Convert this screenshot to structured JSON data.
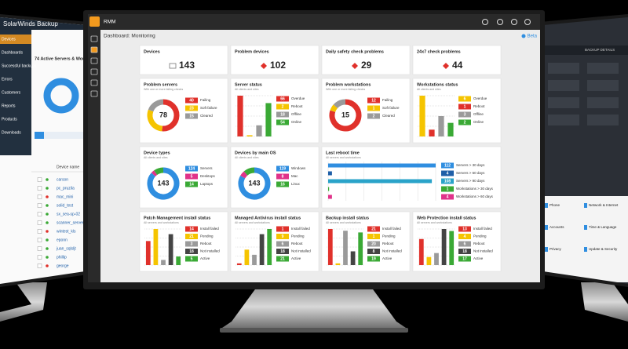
{
  "left_screen": {
    "title": "SolarWinds Backup",
    "nav": [
      "Devices",
      "Dashboards",
      "Successful backups",
      "Errors",
      "Customers",
      "Reports",
      "Products",
      "Downloads"
    ],
    "heading": "74 Active Servers & Workst...",
    "column": "Device name",
    "devices": [
      "carson",
      "pc_pruzila",
      "mac_mini",
      "solid_test",
      "sx_sea-sp-02",
      "scanner_server1",
      "wintest_kls",
      "eponn",
      "juan_sqlsljt",
      "phillip",
      "george"
    ]
  },
  "right_screen": {
    "tab": "BACKUP DETAILS",
    "items": [
      "Phone",
      "Network & Internet",
      "Accounts",
      "Time & Language",
      "Privacy",
      "Update & Security"
    ]
  },
  "app": {
    "name": "RMM",
    "page_title": "Dashboard: Monitoring",
    "badge": "Beta"
  },
  "widgets": [
    {
      "type": "stat",
      "title": "Devices",
      "value": 143,
      "alert": false
    },
    {
      "type": "stat",
      "title": "Problem devices",
      "value": 102,
      "alert": true
    },
    {
      "type": "stat",
      "title": "Daily safety check problems",
      "value": 29,
      "alert": true
    },
    {
      "type": "stat",
      "title": "24x7 check problems",
      "value": 44,
      "alert": true
    },
    {
      "type": "donut",
      "title": "Problem servers",
      "subtitle": "With one or more failing checks",
      "center": 78,
      "legend": [
        {
          "label": "Failing",
          "value": 40,
          "color": "#e0312b"
        },
        {
          "label": "Soft failure",
          "value": 23,
          "color": "#f5c400"
        },
        {
          "label": "Cleared",
          "value": 15,
          "color": "#9a9a9a"
        }
      ]
    },
    {
      "type": "bars",
      "title": "Server status",
      "subtitle": "All clients and sites",
      "legend": [
        {
          "label": "Overdue",
          "value": 66,
          "color": "#e0312b"
        },
        {
          "label": "Reboot",
          "value": 2,
          "color": "#f5c400"
        },
        {
          "label": "Offline",
          "value": 18,
          "color": "#9a9a9a"
        },
        {
          "label": "Online",
          "value": 54,
          "color": "#3aa935"
        }
      ]
    },
    {
      "type": "donut",
      "title": "Problem workstations",
      "subtitle": "With one or more failing checks",
      "center": 15,
      "legend": [
        {
          "label": "Failing",
          "value": 12,
          "color": "#e0312b"
        },
        {
          "label": "Soft failure",
          "value": 1,
          "color": "#f5c400"
        },
        {
          "label": "Cleared",
          "value": 2,
          "color": "#9a9a9a"
        }
      ]
    },
    {
      "type": "bars",
      "title": "Workstations status",
      "subtitle": "All clients and sites",
      "legend": [
        {
          "label": "Overdue",
          "value": 6,
          "color": "#f5c400"
        },
        {
          "label": "Reboot",
          "value": 1,
          "color": "#e0312b"
        },
        {
          "label": "Offline",
          "value": 3,
          "color": "#9a9a9a"
        },
        {
          "label": "Online",
          "value": 2,
          "color": "#3aa935"
        }
      ]
    },
    {
      "type": "donut",
      "title": "Device types",
      "subtitle": "All clients and sites",
      "center": 143,
      "legend": [
        {
          "label": "Servers",
          "value": 124,
          "color": "#2f8ee0"
        },
        {
          "label": "Desktops",
          "value": 5,
          "color": "#e0338a"
        },
        {
          "label": "Laptops",
          "value": 14,
          "color": "#3aa935"
        }
      ]
    },
    {
      "type": "donut",
      "title": "Devices by main OS",
      "subtitle": "All clients and sites",
      "center": 143,
      "legend": [
        {
          "label": "Windows",
          "value": 119,
          "color": "#2f8ee0"
        },
        {
          "label": "Mac",
          "value": 8,
          "color": "#e0338a"
        },
        {
          "label": "Linux",
          "value": 16,
          "color": "#3aa935"
        }
      ]
    },
    {
      "type": "hbars",
      "title": "Last reboot time",
      "subtitle": "All servers and workstations",
      "legend": [
        {
          "label": "Servers > 30 days",
          "value": 112,
          "color": "#2f8ee0"
        },
        {
          "label": "Servers > 60 days",
          "value": 4,
          "color": "#1f5fa8"
        },
        {
          "label": "Servers > 90 days",
          "value": 108,
          "color": "#2aa3c9"
        },
        {
          "label": "Workstations > 30 days",
          "value": 1,
          "color": "#3aa935"
        },
        {
          "label": "Workstations > 60 days",
          "value": 4,
          "color": "#e0338a"
        }
      ]
    },
    {
      "type": "bars",
      "title": "Patch Management install status",
      "subtitle": "All servers and workstations",
      "legend": [
        {
          "label": "Install failed",
          "value": 14,
          "color": "#e0312b"
        },
        {
          "label": "Pending",
          "value": 21,
          "color": "#f5c400"
        },
        {
          "label": "Reboot",
          "value": 3,
          "color": "#9a9a9a"
        },
        {
          "label": "Not installed",
          "value": 18,
          "color": "#444444"
        },
        {
          "label": "Active",
          "value": 5,
          "color": "#3aa935"
        }
      ]
    },
    {
      "type": "bars",
      "title": "Managed Antivirus install status",
      "subtitle": "All servers and workstations",
      "legend": [
        {
          "label": "Install failed",
          "value": 1,
          "color": "#e0312b"
        },
        {
          "label": "Pending",
          "value": 9,
          "color": "#f5c400"
        },
        {
          "label": "Reboot",
          "value": 6,
          "color": "#9a9a9a"
        },
        {
          "label": "Not installed",
          "value": 18,
          "color": "#444444"
        },
        {
          "label": "Active",
          "value": 21,
          "color": "#3aa935"
        }
      ]
    },
    {
      "type": "bars",
      "title": "Backup install status",
      "subtitle": "All servers and workstations",
      "legend": [
        {
          "label": "Install failed",
          "value": 21,
          "color": "#e0312b"
        },
        {
          "label": "Pending",
          "value": 1,
          "color": "#f5c400"
        },
        {
          "label": "Reboot",
          "value": 20,
          "color": "#9a9a9a"
        },
        {
          "label": "Not installed",
          "value": 8,
          "color": "#444444"
        },
        {
          "label": "Active",
          "value": 19,
          "color": "#3aa935"
        }
      ]
    },
    {
      "type": "bars",
      "title": "Web Protection install status",
      "subtitle": "All servers and workstations",
      "legend": [
        {
          "label": "Install failed",
          "value": 13,
          "color": "#e0312b"
        },
        {
          "label": "Pending",
          "value": 4,
          "color": "#f5c400"
        },
        {
          "label": "Reboot",
          "value": 6,
          "color": "#9a9a9a"
        },
        {
          "label": "Not installed",
          "value": 18,
          "color": "#444444"
        },
        {
          "label": "Active",
          "value": 17,
          "color": "#3aa935"
        }
      ]
    }
  ]
}
